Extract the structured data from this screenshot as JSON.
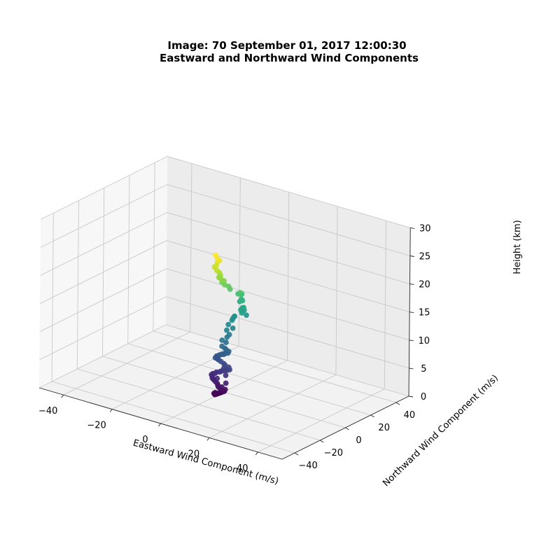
{
  "chart_data": {
    "type": "scatter3d",
    "title_line1": "Image: 70 September 01, 2017 12:00:30",
    "title_line2": "Eastward and Northward Wind Components",
    "xlabel": "Eastward Wind Component (m/s)",
    "ylabel": "Northward Wind Component (m/s)",
    "zlabel": "Height (km)",
    "xlim": [
      -50,
      50
    ],
    "ylim": [
      -50,
      50
    ],
    "zlim": [
      0,
      30
    ],
    "x_ticks": [
      "−40",
      "−20",
      "0",
      "20",
      "40"
    ],
    "y_ticks": [
      "−40",
      "−20",
      "0",
      "20",
      "40"
    ],
    "z_ticks": [
      "0",
      "5",
      "10",
      "15",
      "20",
      "25",
      "30"
    ],
    "grid": true,
    "colormap": "viridis (by height)",
    "pane_colors": {
      "floor": "#f2f2f2",
      "left_wall": "#f7f7f7",
      "back_wall": "#ececec",
      "grid": "#c8c8c8"
    },
    "points": [
      {
        "u": -0.4,
        "v": -6.4,
        "z": 0.2
      },
      {
        "u": -0.1,
        "v": -6.2,
        "z": 0.3
      },
      {
        "u": 0.3,
        "v": -6.0,
        "z": 0.4
      },
      {
        "u": 0.7,
        "v": -6.0,
        "z": 0.5
      },
      {
        "u": 1.1,
        "v": -5.8,
        "z": 0.6
      },
      {
        "u": 1.5,
        "v": -5.5,
        "z": 0.7
      },
      {
        "u": 1.8,
        "v": -5.3,
        "z": 0.8
      },
      {
        "u": 2.2,
        "v": -5.0,
        "z": 0.9
      },
      {
        "u": 2.6,
        "v": -4.8,
        "z": 1.0
      },
      {
        "u": 1.8,
        "v": -5.6,
        "z": 1.2
      },
      {
        "u": 1.1,
        "v": -5.4,
        "z": 1.4
      },
      {
        "u": 0.4,
        "v": -5.4,
        "z": 1.6
      },
      {
        "u": 0.0,
        "v": -5.0,
        "z": 1.8
      },
      {
        "u": -0.4,
        "v": -4.6,
        "z": 2.0
      },
      {
        "u": -1.2,
        "v": -4.5,
        "z": 2.2
      },
      {
        "u": -1.9,
        "v": -4.4,
        "z": 2.4
      },
      {
        "u": -2.6,
        "v": -4.3,
        "z": 2.6
      },
      {
        "u": -3.0,
        "v": -3.7,
        "z": 2.8
      },
      {
        "u": -3.6,
        "v": -3.1,
        "z": 3.0
      },
      {
        "u": -3.1,
        "v": -2.9,
        "z": 3.2
      },
      {
        "u": -2.2,
        "v": -3.0,
        "z": 3.4
      },
      {
        "u": -1.8,
        "v": -2.6,
        "z": 3.6
      },
      {
        "u": -0.5,
        "v": -2.6,
        "z": 3.8
      },
      {
        "u": 0.0,
        "v": -2.9,
        "z": 4.0
      },
      {
        "u": 0.8,
        "v": -3.1,
        "z": 4.2
      },
      {
        "u": 2.1,
        "v": -3.2,
        "z": 4.4
      },
      {
        "u": 2.8,
        "v": -3.0,
        "z": 4.6
      },
      {
        "u": 3.8,
        "v": -3.0,
        "z": 4.8
      },
      {
        "u": 2.9,
        "v": -2.0,
        "z": 5.0
      },
      {
        "u": 1.5,
        "v": -2.2,
        "z": 5.2
      },
      {
        "u": 0.9,
        "v": -2.1,
        "z": 5.4
      },
      {
        "u": -0.4,
        "v": -1.9,
        "z": 5.6
      },
      {
        "u": -1.4,
        "v": -2.0,
        "z": 5.8
      },
      {
        "u": -2.6,
        "v": -2.1,
        "z": 6.0
      },
      {
        "u": -2.6,
        "v": -1.1,
        "z": 6.2
      },
      {
        "u": -1.8,
        "v": -1.2,
        "z": 6.4
      },
      {
        "u": -1.2,
        "v": -1.4,
        "z": 6.6
      },
      {
        "u": -0.5,
        "v": -1.6,
        "z": 6.8
      },
      {
        "u": 0.3,
        "v": -1.7,
        "z": 7.0
      },
      {
        "u": 1.2,
        "v": -1.8,
        "z": 7.2
      },
      {
        "u": 2.3,
        "v": -1.7,
        "z": 7.4
      },
      {
        "u": 2.2,
        "v": -0.8,
        "z": 7.6
      },
      {
        "u": 1.2,
        "v": -0.9,
        "z": 7.8
      },
      {
        "u": 0.7,
        "v": -1.0,
        "z": 8.0
      },
      {
        "u": -0.5,
        "v": -1.0,
        "z": 8.2
      },
      {
        "u": -0.3,
        "v": 1.8,
        "z": 8.6
      },
      {
        "u": -1.3,
        "v": 0.6,
        "z": 9.0
      },
      {
        "u": -0.4,
        "v": 2.8,
        "z": 9.4
      },
      {
        "u": 0.0,
        "v": 3.8,
        "z": 9.8
      },
      {
        "u": -1.8,
        "v": 5.2,
        "z": 10.2
      },
      {
        "u": -0.1,
        "v": 6.7,
        "z": 10.6
      },
      {
        "u": -2.0,
        "v": 6.8,
        "z": 11.0
      },
      {
        "u": -2.1,
        "v": 9.9,
        "z": 11.4
      },
      {
        "u": -2.3,
        "v": 12.1,
        "z": 11.8
      },
      {
        "u": 1.3,
        "v": 14.7,
        "z": 12.2
      },
      {
        "u": 0.1,
        "v": 13.4,
        "z": 12.6
      },
      {
        "u": -1.2,
        "v": 16.3,
        "z": 13.0
      },
      {
        "u": 0.6,
        "v": 11.5,
        "z": 13.4
      },
      {
        "u": 1.3,
        "v": 12.5,
        "z": 13.8
      },
      {
        "u": -1.7,
        "v": 15.1,
        "z": 14.2
      },
      {
        "u": -0.3,
        "v": 14.6,
        "z": 14.6
      },
      {
        "u": -0.3,
        "v": 13.6,
        "z": 15.0
      },
      {
        "u": -1.6,
        "v": 16.5,
        "z": 15.4
      },
      {
        "u": -1.5,
        "v": 13.3,
        "z": 15.8
      },
      {
        "u": 0.7,
        "v": 11.4,
        "z": 16.2
      },
      {
        "u": 0.8,
        "v": 10.6,
        "z": 16.6
      },
      {
        "u": -2.5,
        "v": 8.9,
        "z": 17.0
      },
      {
        "u": -3.1,
        "v": 8.9,
        "z": 17.4
      },
      {
        "u": -3.8,
        "v": 7.2,
        "z": 17.8
      },
      {
        "u": -4.6,
        "v": 6.5,
        "z": 18.2
      },
      {
        "u": -3.7,
        "v": 6.4,
        "z": 18.6
      },
      {
        "u": -4.4,
        "v": 5.2,
        "z": 19.0
      },
      {
        "u": -4.6,
        "v": 3.9,
        "z": 19.4
      },
      {
        "u": -4.0,
        "v": 4.1,
        "z": 19.8
      },
      {
        "u": -4.5,
        "v": 4.2,
        "z": 20.2
      },
      {
        "u": -5.0,
        "v": 3.2,
        "z": 20.6
      },
      {
        "u": -6.4,
        "v": 3.9,
        "z": 21.0
      },
      {
        "u": -5.5,
        "v": 3.6,
        "z": 21.4
      },
      {
        "u": -5.8,
        "v": 5.1,
        "z": 21.8
      },
      {
        "u": -5.0,
        "v": 5.1,
        "z": 22.2
      },
      {
        "u": -5.3,
        "v": 4.1,
        "z": 22.6
      },
      {
        "u": -6.5,
        "v": 4.8,
        "z": 23.0
      },
      {
        "u": -1.0,
        "v": -6.0,
        "z": 0.3
      },
      {
        "u": -0.2,
        "v": -6.6,
        "z": 0.6
      },
      {
        "u": 2.8,
        "v": -4.4,
        "z": 1.3
      },
      {
        "u": 1.2,
        "v": -4.1,
        "z": 1.5
      },
      {
        "u": 2.6,
        "v": -3.6,
        "z": 2.3
      },
      {
        "u": -1.0,
        "v": -3.6,
        "z": 2.7
      },
      {
        "u": 2.0,
        "v": -2.6,
        "z": 3.5
      },
      {
        "u": 1.0,
        "v": -2.3,
        "z": 4.6
      },
      {
        "u": -2.0,
        "v": -1.8,
        "z": 5.9
      },
      {
        "u": 0.4,
        "v": -1.3,
        "z": 6.9
      },
      {
        "u": -2.2,
        "v": 10.7,
        "z": 11.6
      },
      {
        "u": -1.8,
        "v": 11.3,
        "z": 12.0
      },
      {
        "u": 0.2,
        "v": 15.0,
        "z": 12.9
      }
    ]
  }
}
